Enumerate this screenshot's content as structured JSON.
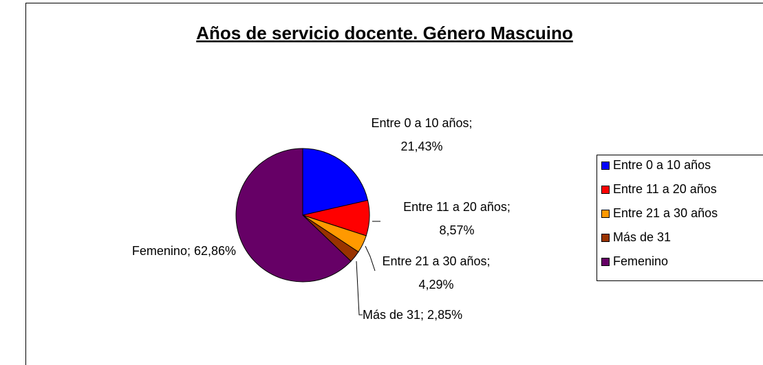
{
  "chart_data": {
    "type": "pie",
    "title": "Años de servicio docente. Género Mascuino",
    "categories": [
      "Entre 0 a 10 años",
      "Entre 11 a 20 años",
      "Entre 21 a 30 años",
      "Más de 31",
      "Femenino"
    ],
    "values": [
      21.43,
      8.57,
      4.29,
      2.85,
      62.86
    ],
    "value_labels": [
      "Entre 0 a 10 años; 21,43%",
      "Entre 11 a 20 años; 8,57%",
      "Entre 21 a 30 años; 4,29%",
      "Más de 31; 2,85%",
      "Femenino; 62,86%"
    ],
    "colors": [
      "#0000ff",
      "#ff0000",
      "#ff9900",
      "#993300",
      "#660066"
    ],
    "legend": "right"
  }
}
